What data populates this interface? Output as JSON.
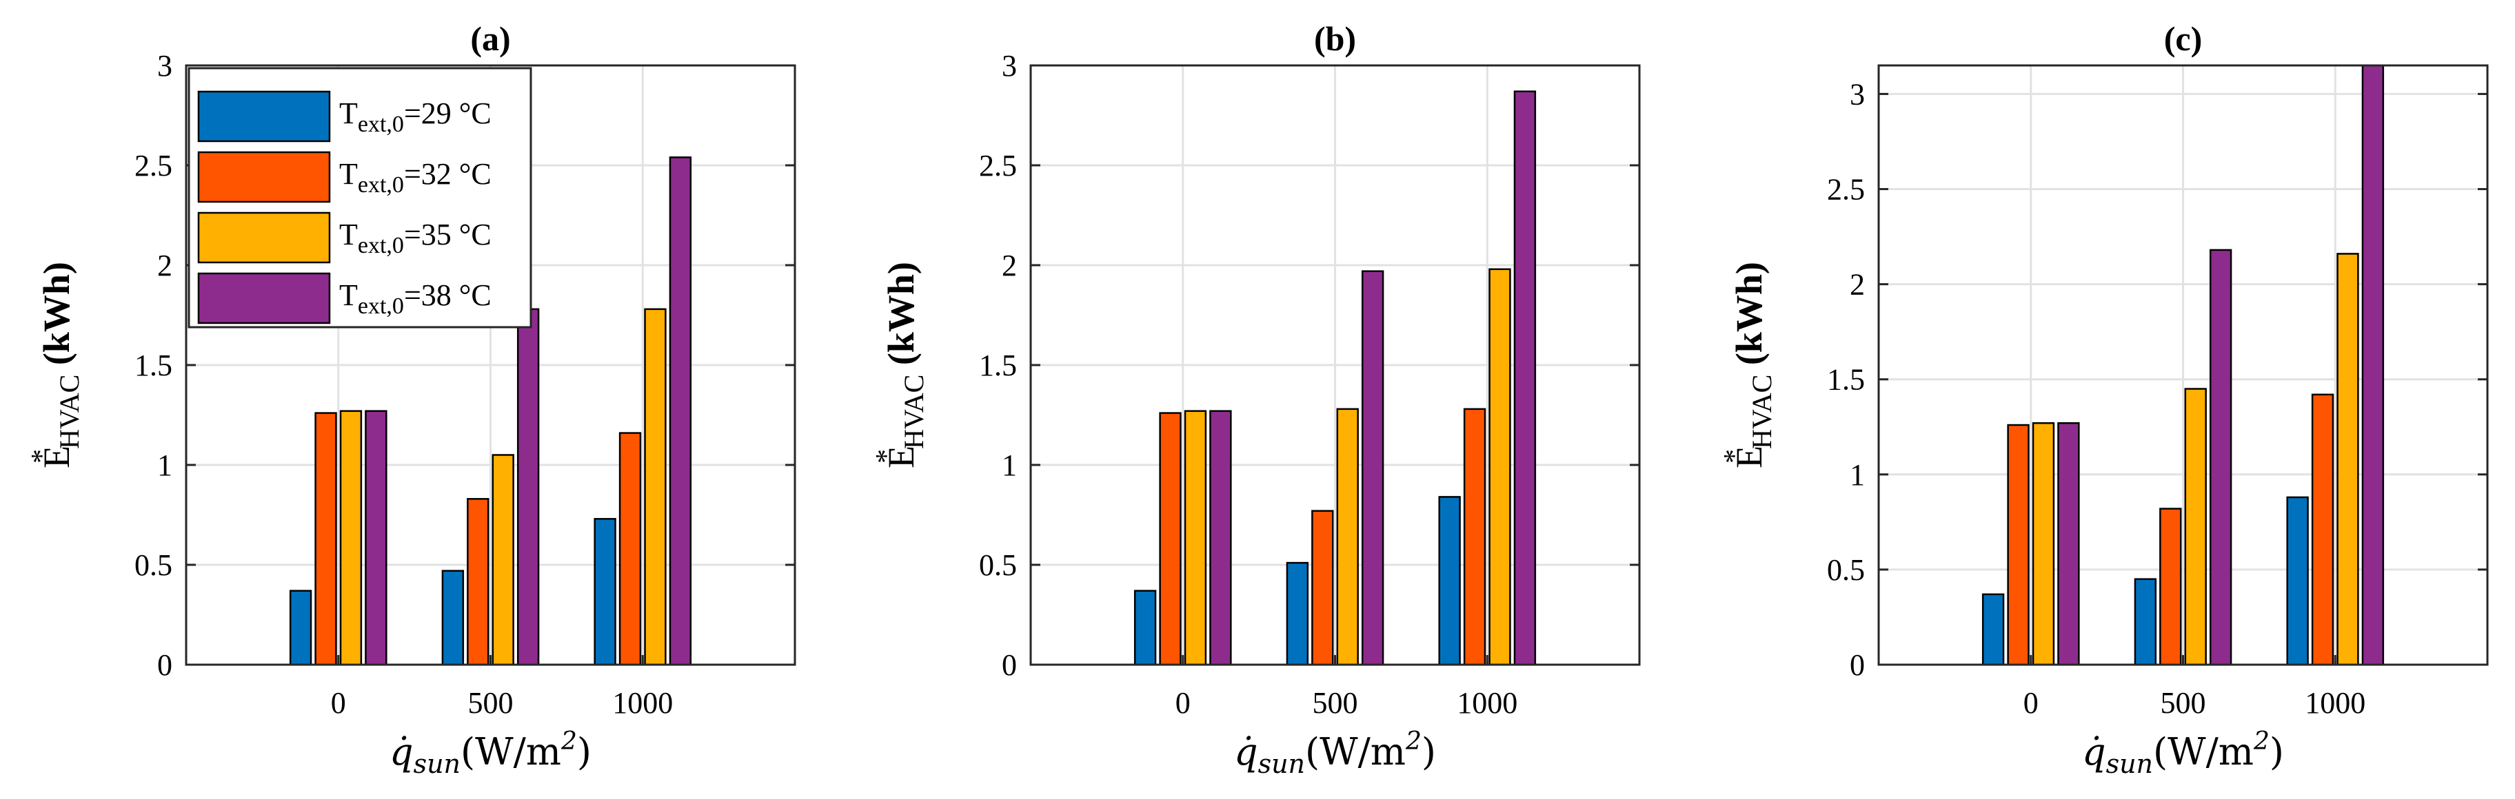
{
  "chart_data": [
    {
      "type": "bar",
      "title": "(a)",
      "categories": [
        "0",
        "500",
        "1000"
      ],
      "xlabel": "q̇sun(W/m2)",
      "ylabel": "E*HVAC (kWh)",
      "ylim": [
        0,
        3
      ],
      "yticks": [
        "0",
        "0.5",
        "1",
        "1.5",
        "2",
        "2.5",
        "3"
      ],
      "grid": true,
      "legend": "top-left",
      "series": [
        {
          "name": "Text,0=29 °C",
          "values": [
            0.37,
            0.47,
            0.73
          ]
        },
        {
          "name": "Text,0=32 °C",
          "values": [
            1.26,
            0.83,
            1.16
          ]
        },
        {
          "name": "Text,0=35 °C",
          "values": [
            1.27,
            1.05,
            1.78
          ]
        },
        {
          "name": "Text,0=38 °C",
          "values": [
            1.27,
            1.78,
            2.54
          ]
        }
      ]
    },
    {
      "type": "bar",
      "title": "(b)",
      "categories": [
        "0",
        "500",
        "1000"
      ],
      "xlabel": "q̇sun(W/m2)",
      "ylabel": "E*HVAC (kWh)",
      "ylim": [
        0,
        3
      ],
      "yticks": [
        "0",
        "0.5",
        "1",
        "1.5",
        "2",
        "2.5",
        "3"
      ],
      "grid": true,
      "series": [
        {
          "name": "Text,0=29 °C",
          "values": [
            0.37,
            0.51,
            0.84
          ]
        },
        {
          "name": "Text,0=32 °C",
          "values": [
            1.26,
            0.77,
            1.28
          ]
        },
        {
          "name": "Text,0=35 °C",
          "values": [
            1.27,
            1.28,
            1.98
          ]
        },
        {
          "name": "Text,0=38 °C",
          "values": [
            1.27,
            1.97,
            2.87
          ]
        }
      ]
    },
    {
      "type": "bar",
      "title": "(c)",
      "categories": [
        "0",
        "500",
        "1000"
      ],
      "xlabel": "q̇sun(W/m2)",
      "ylabel": "E*HVAC (kWh)",
      "ylim": [
        0,
        3.15
      ],
      "yticks": [
        "0",
        "0.5",
        "1",
        "1.5",
        "2",
        "2.5",
        "3"
      ],
      "grid": true,
      "series": [
        {
          "name": "Text,0=29 °C",
          "values": [
            0.37,
            0.45,
            0.88
          ]
        },
        {
          "name": "Text,0=32 °C",
          "values": [
            1.26,
            0.82,
            1.42
          ]
        },
        {
          "name": "Text,0=35 °C",
          "values": [
            1.27,
            1.45,
            2.16
          ]
        },
        {
          "name": "Text,0=38 °C",
          "values": [
            1.27,
            2.18,
            3.15
          ]
        }
      ]
    }
  ],
  "colors": [
    "#0072BD",
    "#FF5500",
    "#FFB000",
    "#8E2C8E"
  ],
  "legend": {
    "entries": [
      {
        "main": "T",
        "sub": "ext,0",
        "rest": "=29 °C"
      },
      {
        "main": "T",
        "sub": "ext,0",
        "rest": "=32 °C"
      },
      {
        "main": "T",
        "sub": "ext,0",
        "rest": "=35 °C"
      },
      {
        "main": "T",
        "sub": "ext,0",
        "rest": "=38 °C"
      }
    ]
  },
  "axis_text": {
    "ylabel_main": "E",
    "ylabel_sup": "*",
    "ylabel_sub": "HVAC",
    "ylabel_unit": " (kWh)",
    "xlabel_q": "q̇",
    "xlabel_sub": "sun",
    "xlabel_rest": "(W/m",
    "xlabel_sup": "2",
    "xlabel_close": ")"
  }
}
